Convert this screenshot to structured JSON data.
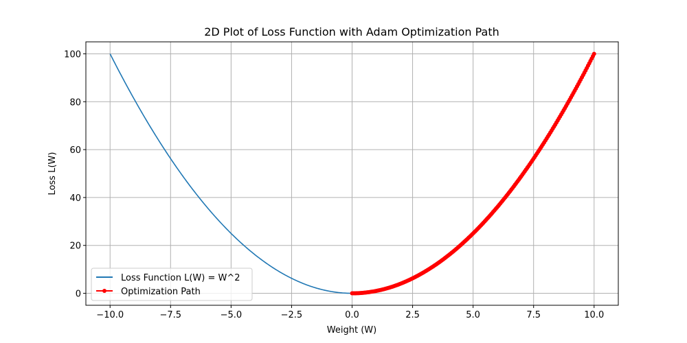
{
  "chart_data": {
    "type": "line",
    "title": "2D Plot of Loss Function with Adam Optimization Path",
    "xlabel": "Weight (W)",
    "ylabel": "Loss L(W)",
    "xlim": [
      -11,
      11
    ],
    "ylim": [
      -5,
      105
    ],
    "xticks": [
      -10.0,
      -7.5,
      -5.0,
      -2.5,
      0.0,
      2.5,
      5.0,
      7.5,
      10.0
    ],
    "xtick_labels": [
      "−10.0",
      "−7.5",
      "−5.0",
      "−2.5",
      "0.0",
      "2.5",
      "5.0",
      "7.5",
      "10.0"
    ],
    "yticks": [
      0,
      20,
      40,
      60,
      80,
      100
    ],
    "ytick_labels": [
      "0",
      "20",
      "40",
      "60",
      "80",
      "100"
    ],
    "grid": true,
    "legend_position": "lower-left",
    "series": [
      {
        "name": "Loss Function L(W) = W^2",
        "color": "#1f77b4",
        "marker": "none",
        "function": "W^2",
        "x_range": [
          -10,
          10
        ]
      },
      {
        "name": "Optimization Path",
        "color": "#ff0000",
        "marker": "circle",
        "function": "W^2",
        "x_start": 10.0,
        "x_end": 0.0,
        "steps": 200
      }
    ]
  }
}
